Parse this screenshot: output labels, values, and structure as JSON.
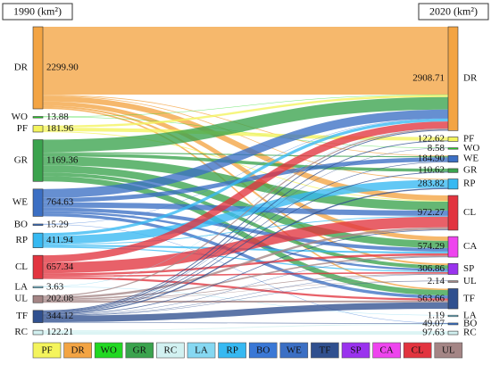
{
  "chart_data": {
    "type": "sankey",
    "left_header": "1990 (km²)",
    "right_header": "2020 (km²)",
    "left_nodes": [
      {
        "label": "DR",
        "value": 2299.9,
        "value_label": "2299.90",
        "color": "#f3a443"
      },
      {
        "label": "WO",
        "value": 13.88,
        "color": "#22d822"
      },
      {
        "label": "PF",
        "value": 181.96,
        "color": "#f4f45c"
      },
      {
        "label": "GR",
        "value": 1169.36,
        "color": "#3aa34d"
      },
      {
        "label": "WE",
        "value": 764.63,
        "color": "#3b6fc4"
      },
      {
        "label": "BO",
        "value": 15.29,
        "color": "#3a78d6"
      },
      {
        "label": "RP",
        "value": 411.94,
        "color": "#36b9f2"
      },
      {
        "label": "CL",
        "value": 657.34,
        "color": "#e2343f"
      },
      {
        "label": "LA",
        "value": 3.63,
        "color": "#86d8f2"
      },
      {
        "label": "UL",
        "value": 202.08,
        "color": "#a48585"
      },
      {
        "label": "TF",
        "value": 344.12,
        "color": "#30508f"
      },
      {
        "label": "RC",
        "value": 122.21,
        "color": "#d2f1f1"
      }
    ],
    "right_nodes": [
      {
        "label": "DR",
        "value": 2908.71,
        "color": "#f3a443"
      },
      {
        "label": "PF",
        "value": 122.62,
        "color": "#f4f45c"
      },
      {
        "label": "WO",
        "value": 8.58,
        "color": "#22d822"
      },
      {
        "label": "WE",
        "value": 184.9,
        "value_label": "184.90",
        "color": "#3b6fc4"
      },
      {
        "label": "GR",
        "value": 110.62,
        "color": "#3aa34d"
      },
      {
        "label": "RP",
        "value": 283.82,
        "color": "#36b9f2"
      },
      {
        "label": "CL",
        "value": 972.27,
        "color": "#e2343f"
      },
      {
        "label": "CA",
        "value": 574.29,
        "color": "#ee44ee"
      },
      {
        "label": "SP",
        "value": 306.86,
        "color": "#9a33ee"
      },
      {
        "label": "UL",
        "value": 2.14,
        "color": "#a48585"
      },
      {
        "label": "TF",
        "value": 563.66,
        "color": "#30508f"
      },
      {
        "label": "LA",
        "value": 1.19,
        "color": "#86d8f2"
      },
      {
        "label": "BO",
        "value": 49.07,
        "color": "#3a78d6"
      },
      {
        "label": "RC",
        "value": 97.63,
        "color": "#d2f1f1"
      }
    ],
    "links": [
      {
        "source": 0,
        "target": 0,
        "value": 1900
      },
      {
        "source": 0,
        "target": 6,
        "value": 150
      },
      {
        "source": 0,
        "target": 7,
        "value": 120
      },
      {
        "source": 0,
        "target": 8,
        "value": 50
      },
      {
        "source": 0,
        "target": 10,
        "value": 40
      },
      {
        "source": 0,
        "target": 3,
        "value": 20
      },
      {
        "source": 0,
        "target": 5,
        "value": 19.9
      },
      {
        "source": 1,
        "target": 0,
        "value": 8
      },
      {
        "source": 1,
        "target": 2,
        "value": 5.88
      },
      {
        "source": 2,
        "target": 1,
        "value": 100
      },
      {
        "source": 2,
        "target": 0,
        "value": 60
      },
      {
        "source": 2,
        "target": 6,
        "value": 21.96
      },
      {
        "source": 3,
        "target": 0,
        "value": 350
      },
      {
        "source": 3,
        "target": 4,
        "value": 90
      },
      {
        "source": 3,
        "target": 6,
        "value": 250
      },
      {
        "source": 3,
        "target": 7,
        "value": 200
      },
      {
        "source": 3,
        "target": 8,
        "value": 100
      },
      {
        "source": 3,
        "target": 10,
        "value": 150
      },
      {
        "source": 3,
        "target": 3,
        "value": 29.36
      },
      {
        "source": 4,
        "target": 0,
        "value": 250
      },
      {
        "source": 4,
        "target": 3,
        "value": 120
      },
      {
        "source": 4,
        "target": 6,
        "value": 150
      },
      {
        "source": 4,
        "target": 7,
        "value": 100
      },
      {
        "source": 4,
        "target": 8,
        "value": 60
      },
      {
        "source": 4,
        "target": 10,
        "value": 84.63
      },
      {
        "source": 5,
        "target": 12,
        "value": 10
      },
      {
        "source": 5,
        "target": 0,
        "value": 5.29
      },
      {
        "source": 6,
        "target": 5,
        "value": 230
      },
      {
        "source": 6,
        "target": 0,
        "value": 80
      },
      {
        "source": 6,
        "target": 7,
        "value": 50
      },
      {
        "source": 6,
        "target": 8,
        "value": 30
      },
      {
        "source": 6,
        "target": 6,
        "value": 21.94
      },
      {
        "source": 7,
        "target": 6,
        "value": 300
      },
      {
        "source": 7,
        "target": 0,
        "value": 200
      },
      {
        "source": 7,
        "target": 7,
        "value": 60
      },
      {
        "source": 7,
        "target": 8,
        "value": 40
      },
      {
        "source": 7,
        "target": 10,
        "value": 57.34
      },
      {
        "source": 8,
        "target": 11,
        "value": 1.19
      },
      {
        "source": 8,
        "target": 0,
        "value": 2.44
      },
      {
        "source": 9,
        "target": 0,
        "value": 30
      },
      {
        "source": 9,
        "target": 6,
        "value": 60
      },
      {
        "source": 9,
        "target": 7,
        "value": 40
      },
      {
        "source": 9,
        "target": 8,
        "value": 20
      },
      {
        "source": 9,
        "target": 10,
        "value": 50
      },
      {
        "source": 9,
        "target": 9,
        "value": 2.08
      },
      {
        "source": 10,
        "target": 10,
        "value": 181.67
      },
      {
        "source": 10,
        "target": 0,
        "value": 22.98
      },
      {
        "source": 10,
        "target": 12,
        "value": 14.49
      },
      {
        "source": 10,
        "target": 1,
        "value": 22.62
      },
      {
        "source": 10,
        "target": 2,
        "value": 2.7
      },
      {
        "source": 10,
        "target": 3,
        "value": 15.54
      },
      {
        "source": 10,
        "target": 4,
        "value": 20.62
      },
      {
        "source": 10,
        "target": 5,
        "value": 33.92
      },
      {
        "source": 10,
        "target": 6,
        "value": 18.37
      },
      {
        "source": 10,
        "target": 7,
        "value": 4.29
      },
      {
        "source": 10,
        "target": 8,
        "value": 6.86
      },
      {
        "source": 10,
        "target": 9,
        "value": 0.06
      },
      {
        "source": 11,
        "target": 13,
        "value": 97.63
      },
      {
        "source": 11,
        "target": 12,
        "value": 24.58
      }
    ],
    "legend": [
      {
        "label": "PF",
        "color": "#f4f45c"
      },
      {
        "label": "DR",
        "color": "#f3a443"
      },
      {
        "label": "WO",
        "color": "#22d822"
      },
      {
        "label": "GR",
        "color": "#3aa34d"
      },
      {
        "label": "RC",
        "color": "#d2f1f1"
      },
      {
        "label": "LA",
        "color": "#86d8f2"
      },
      {
        "label": "RP",
        "color": "#36b9f2"
      },
      {
        "label": "BO",
        "color": "#3a78d6"
      },
      {
        "label": "WE",
        "color": "#3b6fc4"
      },
      {
        "label": "TF",
        "color": "#30508f"
      },
      {
        "label": "SP",
        "color": "#9a33ee"
      },
      {
        "label": "CA",
        "color": "#ee44ee"
      },
      {
        "label": "CL",
        "color": "#e2343f"
      },
      {
        "label": "UL",
        "color": "#a48585"
      }
    ]
  }
}
